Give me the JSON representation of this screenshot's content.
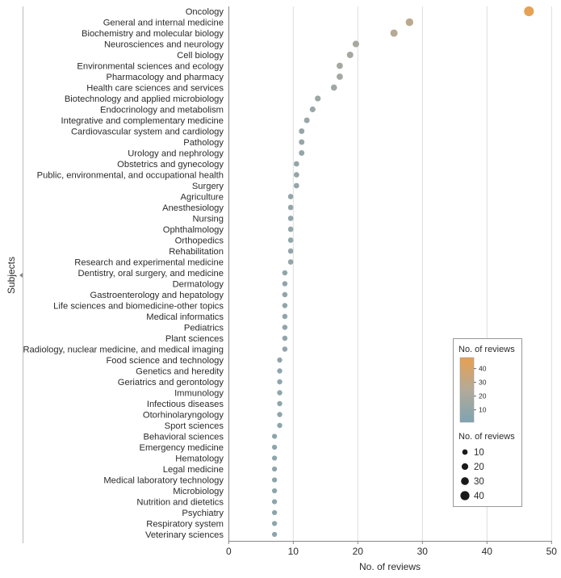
{
  "chart_data": {
    "type": "scatter",
    "title": "",
    "xlabel": "No. of reviews",
    "ylabel": "Subjects",
    "xlim": [
      0,
      50
    ],
    "xticks": [
      0,
      10,
      20,
      30,
      40,
      50
    ],
    "grid": "vertical",
    "legend_placement": "bottom-right",
    "categories": [
      "Oncology",
      "General and internal medicine",
      "Biochemistry and molecular biology",
      "Neurosciences and neurology",
      "Cell biology",
      "Environmental sciences and ecology",
      "Pharmacology and pharmacy",
      "Health care sciences and services",
      "Biotechnology and applied microbiology",
      "Endocrinology and metabolism",
      "Integrative and complementary medicine",
      "Cardiovascular system and cardiology",
      "Pathology",
      "Urology and nephrology",
      "Obstetrics and gynecology",
      "Public, environmental, and occupational health",
      "Surgery",
      "Agriculture",
      "Anesthesiology",
      "Nursing",
      "Ophthalmology",
      "Orthopedics",
      "Rehabilitation",
      "Research and experimental medicine",
      "Dentistry, oral surgery, and medicine",
      "Dermatology",
      "Gastroenterology and hepatology",
      "Life sciences and biomedicine-other topics",
      "Medical informatics",
      "Pediatrics",
      "Plant sciences",
      "Radiology, nuclear medicine, and medical imaging",
      "Food science and technology",
      "Genetics and heredity",
      "Geriatrics and gerontology",
      "Immunology",
      "Infectious diseases",
      "Otorhinolaryngology",
      "Sport sciences",
      "Behavioral sciences",
      "Emergency medicine",
      "Hematology",
      "Legal medicine",
      "Medical laboratory technology",
      "Microbiology",
      "Nutrition and dietetics",
      "Psychiatry",
      "Respiratory system",
      "Veterinary sciences"
    ],
    "values": [
      46.5,
      28,
      25.6,
      19.7,
      18.8,
      17.2,
      17.2,
      16.3,
      13.8,
      13,
      12.1,
      11.3,
      11.3,
      11.3,
      10.5,
      10.5,
      10.5,
      9.6,
      9.6,
      9.6,
      9.6,
      9.6,
      9.6,
      9.6,
      8.7,
      8.7,
      8.7,
      8.7,
      8.7,
      8.7,
      8.7,
      8.7,
      7.9,
      7.9,
      7.9,
      7.9,
      7.9,
      7.9,
      7.9,
      7.1,
      7.1,
      7.1,
      7.1,
      7.1,
      7.1,
      7.1,
      7.1,
      7.1,
      7.1
    ],
    "color_scale": {
      "title": "No. of reviews",
      "ticks": [
        10,
        20,
        30,
        40
      ],
      "range": [
        1,
        48
      ],
      "low": "#7fa3b3",
      "mid": "#b3aa99",
      "high": "#e9a04f"
    },
    "size_legend": {
      "title": "No. of reviews",
      "entries": [
        "10",
        "20",
        "30",
        "40"
      ]
    }
  }
}
